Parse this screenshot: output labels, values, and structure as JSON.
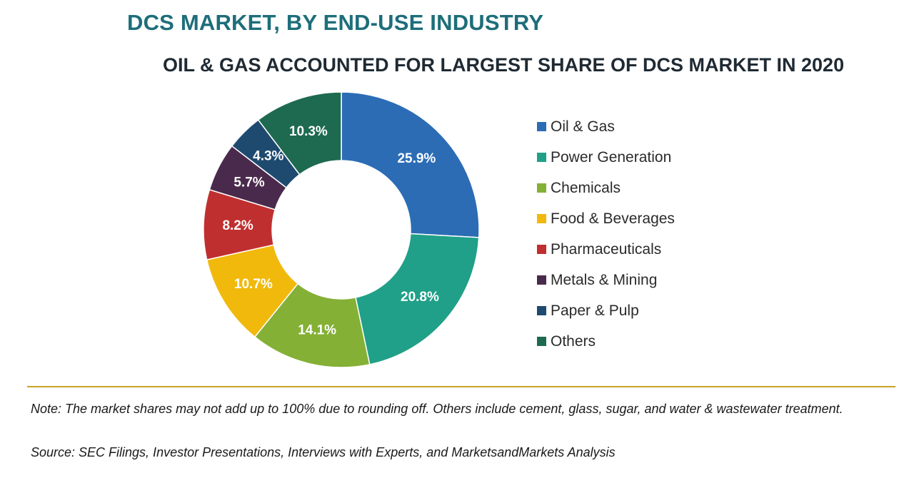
{
  "header": {
    "title": "DCS MARKET, BY END-USE INDUSTRY",
    "subtitle": "OIL & GAS ACCOUNTED FOR LARGEST SHARE OF DCS MARKET IN 2020"
  },
  "chart_data": {
    "type": "pie",
    "variant": "donut",
    "title": "DCS MARKET, BY END-USE INDUSTRY",
    "subtitle": "OIL & GAS ACCOUNTED FOR LARGEST SHARE OF DCS MARKET IN 2020",
    "legend_position": "right",
    "categories": [
      "Oil & Gas",
      "Power Generation",
      "Chemicals",
      "Food & Beverages",
      "Pharmaceuticals",
      "Metals & Mining",
      "Paper & Pulp",
      "Others"
    ],
    "values": [
      25.9,
      20.8,
      14.1,
      10.7,
      8.2,
      5.7,
      4.3,
      10.3
    ],
    "data_labels": [
      "25.9%",
      "20.8%",
      "14.1%",
      "10.7%",
      "8.2%",
      "5.7%",
      "4.3%",
      "10.3%"
    ],
    "colors": [
      "#2b6cb5",
      "#20a088",
      "#84b035",
      "#f0b90c",
      "#c02f2f",
      "#4a2a4c",
      "#1f4a70",
      "#1e6a50"
    ],
    "units": "%"
  },
  "footer": {
    "note": "Note: The market shares may not add up to 100% due to rounding off. Others include cement, glass, sugar, and water & wastewater treatment.",
    "source": "Source: SEC Filings, Investor Presentations, Interviews with Experts, and MarketsandMarkets Analysis"
  }
}
